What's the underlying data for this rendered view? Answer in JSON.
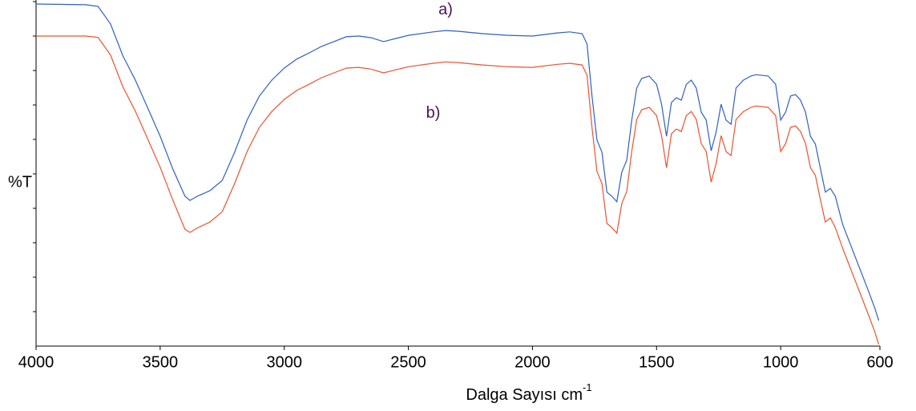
{
  "chart_data": {
    "type": "line",
    "y_label": "%T",
    "x_label": {
      "text": "Dalga Sayısı cm",
      "superscript": "-1"
    },
    "annotations": [
      {
        "text": "a)",
        "x": 2350,
        "y": 97.5
      },
      {
        "text": "b)",
        "x": 2400,
        "y": 67.5
      }
    ],
    "annotation_color": "#4a1450",
    "xlim": [
      4000,
      600
    ],
    "ylim": [
      0,
      100
    ],
    "xticks": [
      4000,
      3500,
      3000,
      2500,
      2000,
      1500,
      1000,
      600
    ],
    "yticks": [
      10,
      20,
      30,
      40,
      50,
      60,
      70,
      80,
      90,
      100
    ],
    "x": [
      4000,
      3800,
      3750,
      3700,
      3650,
      3600,
      3550,
      3500,
      3450,
      3400,
      3380,
      3350,
      3300,
      3250,
      3200,
      3150,
      3100,
      3050,
      3000,
      2950,
      2900,
      2850,
      2800,
      2750,
      2700,
      2650,
      2600,
      2550,
      2500,
      2400,
      2350,
      2300,
      2200,
      2100,
      2000,
      1900,
      1850,
      1800,
      1780,
      1760,
      1740,
      1720,
      1700,
      1680,
      1660,
      1640,
      1620,
      1600,
      1580,
      1560,
      1530,
      1500,
      1480,
      1460,
      1440,
      1420,
      1400,
      1380,
      1360,
      1340,
      1320,
      1300,
      1280,
      1260,
      1240,
      1220,
      1200,
      1180,
      1150,
      1120,
      1100,
      1050,
      1020,
      1000,
      980,
      960,
      940,
      920,
      900,
      880,
      860,
      840,
      820,
      800,
      780,
      750,
      700,
      650,
      620,
      605
    ],
    "series": [
      {
        "color": "#2e5fc8",
        "values": [
          99.3,
          99.1,
          98.6,
          93.5,
          84.2,
          77.2,
          69.1,
          60.9,
          51.6,
          43.5,
          42.3,
          43.5,
          45.1,
          48.1,
          56.3,
          65.6,
          72.6,
          77.2,
          80.7,
          83.3,
          85.1,
          87.0,
          88.4,
          89.8,
          90.0,
          89.5,
          88.4,
          89.3,
          90.2,
          91.2,
          91.6,
          91.4,
          90.7,
          90.2,
          90.0,
          90.9,
          91.2,
          90.7,
          87.7,
          72.6,
          59.8,
          56.3,
          44.7,
          43.5,
          41.9,
          50.5,
          54.0,
          65.6,
          74.9,
          77.7,
          78.4,
          76.0,
          70.2,
          60.9,
          70.7,
          72.1,
          71.4,
          76.0,
          77.2,
          74.9,
          67.9,
          65.6,
          56.7,
          62.1,
          70.2,
          65.6,
          64.4,
          74.9,
          77.2,
          78.4,
          78.8,
          78.4,
          76.0,
          65.6,
          67.9,
          72.6,
          73.0,
          71.4,
          67.9,
          60.9,
          58.6,
          51.6,
          44.7,
          45.8,
          43.5,
          35.3,
          26.0,
          16.7,
          10.9,
          7.4
        ]
      },
      {
        "color": "#f0502e",
        "values": [
          90.0,
          90.0,
          89.6,
          84.5,
          75.2,
          68.2,
          60.1,
          51.9,
          42.6,
          33.9,
          33.0,
          34.3,
          36.0,
          39.0,
          47.2,
          56.5,
          63.5,
          68.1,
          71.6,
          74.2,
          76.0,
          77.9,
          79.3,
          80.7,
          80.9,
          80.4,
          79.3,
          80.2,
          81.1,
          82.1,
          82.5,
          82.3,
          81.6,
          81.1,
          80.9,
          81.8,
          82.1,
          81.6,
          78.6,
          63.5,
          50.7,
          47.2,
          35.6,
          34.4,
          32.8,
          41.4,
          44.9,
          56.5,
          65.8,
          68.6,
          69.3,
          66.9,
          61.1,
          51.8,
          61.6,
          63.0,
          62.3,
          66.9,
          68.1,
          65.8,
          58.8,
          56.5,
          47.6,
          53.0,
          61.1,
          56.5,
          55.3,
          65.8,
          68.1,
          69.3,
          69.7,
          69.3,
          66.9,
          56.5,
          58.8,
          63.5,
          63.9,
          62.3,
          58.8,
          51.8,
          49.5,
          42.5,
          36.0,
          37.2,
          34.4,
          28.4,
          19.1,
          9.8,
          4.0,
          0.5
        ]
      }
    ]
  }
}
